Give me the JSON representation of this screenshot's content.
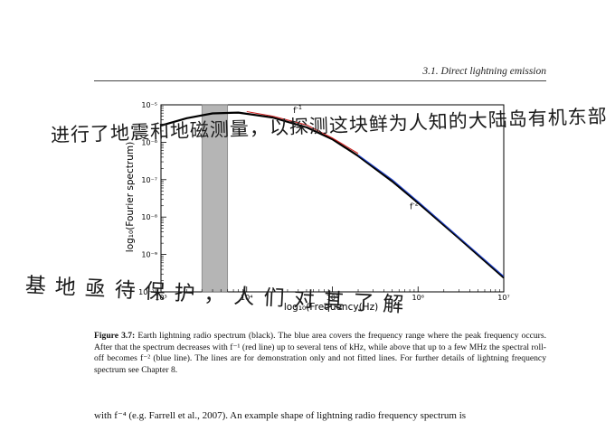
{
  "header": {
    "section": "3.1.  Direct lightning emission"
  },
  "chart_data": {
    "type": "line",
    "xlabel": "log₁₀(Frequency(Hz)",
    "ylabel": "log₁₀(Fourier spectrum)",
    "xscale": "log",
    "yscale": "log",
    "xlim": [
      1000,
      10000000
    ],
    "ylim": [
      1e-10,
      1e-05
    ],
    "x_ticks": [
      "10³",
      "10⁴",
      "10⁵",
      "10⁶",
      "10⁷"
    ],
    "y_ticks": [
      "10⁻¹⁰",
      "10⁻⁹",
      "10⁻⁸",
      "10⁻⁷",
      "10⁻⁶",
      "10⁻⁵"
    ],
    "peak_band": {
      "x_from": 3000,
      "x_to": 6000,
      "color": "#a8a8a8"
    },
    "colors": {
      "spectrum": "#000000",
      "f1": "#cc2222",
      "f2": "#2244cc"
    },
    "annotations": [
      {
        "text": "f",
        "sup": "-1",
        "x": 35000,
        "y": 6e-06
      },
      {
        "text": "f",
        "sup": "-2",
        "x": 800000,
        "y": 1.6e-08
      }
    ],
    "series": [
      {
        "values": [
          [
            1000,
            2.8e-06
          ],
          [
            2000,
            4.4e-06
          ],
          [
            4000,
            5.9e-06
          ],
          [
            8000,
            6.2e-06
          ],
          [
            20000,
            4.6e-06
          ],
          [
            50000,
            2.5e-06
          ],
          [
            100000,
            1.2e-06
          ],
          [
            200000,
            4.3e-07
          ],
          [
            500000,
            9e-08
          ],
          [
            1000000,
            2.4e-08
          ],
          [
            3000000,
            2.7e-09
          ],
          [
            10000000,
            2.4e-10
          ]
        ]
      },
      {
        "values": [
          [
            10000,
            6.6e-06
          ],
          [
            20000,
            5e-06
          ],
          [
            50000,
            2.9e-06
          ],
          [
            100000,
            1.3e-06
          ],
          [
            200000,
            5e-07
          ]
        ]
      },
      {
        "values": [
          [
            200000,
            4.6e-07
          ],
          [
            500000,
            1e-07
          ],
          [
            1000000,
            2.6e-08
          ],
          [
            3000000,
            2.9e-09
          ],
          [
            10000000,
            2.6e-10
          ]
        ]
      }
    ]
  },
  "caption": {
    "label": "Figure 3.7:",
    "text": " Earth lightning radio spectrum (black).  The blue area covers the frequency range where the peak frequency occurs. After that the spectrum decreases with f⁻¹ (red line) up to several tens of kHz, while above that up to a few MHz the spectral roll-off becomes f⁻² (blue line).  The lines are for demonstration only and not fitted lines. For further details of lightning frequency spectrum see Chapter 8."
  },
  "body": {
    "text": "with f⁻⁴ (e.g. Farrell et al., 2007).  An example shape of lightning radio frequency spectrum is"
  },
  "handwriting": {
    "line1": "进行了地震和地磁测量，以探测这块鲜为人知的大陆岛有机东部",
    "line2": "基地亟待保护，人们对其了解"
  }
}
